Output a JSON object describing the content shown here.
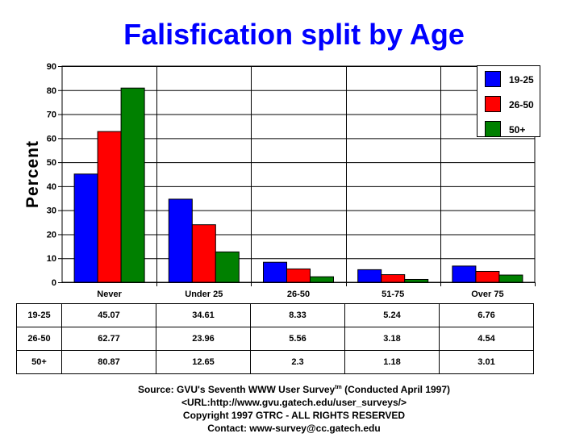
{
  "chart_data": {
    "type": "bar",
    "title": "Falisfication split by Age",
    "xlabel": "",
    "ylabel": "Percent",
    "ylim": [
      0,
      90
    ],
    "yticks": [
      0,
      10,
      20,
      30,
      40,
      50,
      60,
      70,
      80,
      90
    ],
    "grid": true,
    "legend_position": "top-right",
    "categories": [
      "Never",
      "Under 25",
      "26-50",
      "51-75",
      "Over 75"
    ],
    "series": [
      {
        "name": "19-25",
        "color": "#0000ff",
        "values": [
          45.07,
          34.61,
          8.33,
          5.24,
          6.76
        ],
        "labels": [
          "45.07",
          "34.61",
          "8.33",
          "5.24",
          "6.76"
        ]
      },
      {
        "name": "26-50",
        "color": "#ff0000",
        "values": [
          62.77,
          23.96,
          5.56,
          3.18,
          4.54
        ],
        "labels": [
          "62.77",
          "23.96",
          "5.56",
          "3.18",
          "4.54"
        ]
      },
      {
        "name": "50+",
        "color": "#008000",
        "values": [
          80.87,
          12.65,
          2.3,
          1.18,
          3.01
        ],
        "labels": [
          "80.87",
          "12.65",
          "2.3",
          "1.18",
          "3.01"
        ]
      }
    ]
  },
  "footer": {
    "source_prefix": "Source: GVU's Seventh WWW User Survey",
    "source_tm": "tm",
    "source_suffix": " (Conducted April 1997)",
    "url": "<URL:http://www.gvu.gatech.edu/user_surveys/>",
    "copyright": "Copyright 1997 GTRC - ALL RIGHTS RESERVED",
    "contact": "Contact: www-survey@cc.gatech.edu"
  }
}
